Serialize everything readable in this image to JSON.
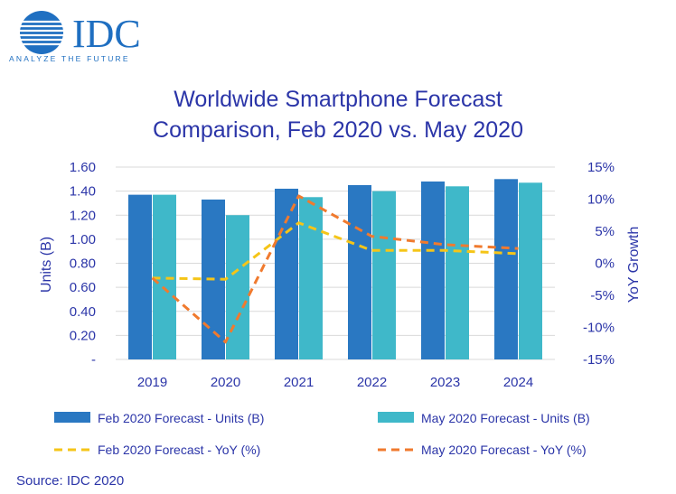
{
  "brand": {
    "name": "IDC",
    "tagline": "ANALYZE THE FUTURE",
    "color": "#1f6fc1"
  },
  "source": "Source: IDC 2020",
  "colors": {
    "feb_units": "#2a78c2",
    "may_units": "#3fb8c9",
    "feb_yoy": "#f5c518",
    "may_yoy": "#f07a2e",
    "text": "#2b35a8"
  },
  "chart_data": {
    "type": "bar",
    "title": [
      "Worldwide Smartphone Forecast",
      "Comparison, Feb 2020 vs. May 2020"
    ],
    "categories": [
      "2019",
      "2020",
      "2021",
      "2022",
      "2023",
      "2024"
    ],
    "ylabel": "Units (B)",
    "ylabel_right": "YoY Growth",
    "ylim": [
      0,
      1.6
    ],
    "ylim_right": [
      -15,
      15
    ],
    "yticks": [
      "1.60",
      "1.40",
      "1.20",
      "1.00",
      "0.80",
      "0.60",
      "0.40",
      "0.20",
      "-"
    ],
    "yticks_right": [
      "15%",
      "10%",
      "5%",
      "0%",
      "-5%",
      "-10%",
      "-15%"
    ],
    "grid": true,
    "legend_position": "bottom",
    "series": [
      {
        "name": "Feb 2020 Forecast - Units (B)",
        "kind": "bar",
        "axis": "left",
        "values": [
          1.37,
          1.33,
          1.42,
          1.45,
          1.48,
          1.5
        ]
      },
      {
        "name": "May 2020 Forecast - Units (B)",
        "kind": "bar",
        "axis": "left",
        "values": [
          1.37,
          1.2,
          1.35,
          1.4,
          1.44,
          1.47
        ]
      },
      {
        "name": "Feb 2020 Forecast - YoY (%)",
        "kind": "line",
        "axis": "right",
        "values": [
          -2.3,
          -2.5,
          6.3,
          2.0,
          2.0,
          1.5
        ]
      },
      {
        "name": "May 2020 Forecast - YoY (%)",
        "kind": "line",
        "axis": "right",
        "values": [
          -2.3,
          -12.3,
          10.5,
          4.2,
          2.9,
          2.3
        ]
      }
    ]
  }
}
